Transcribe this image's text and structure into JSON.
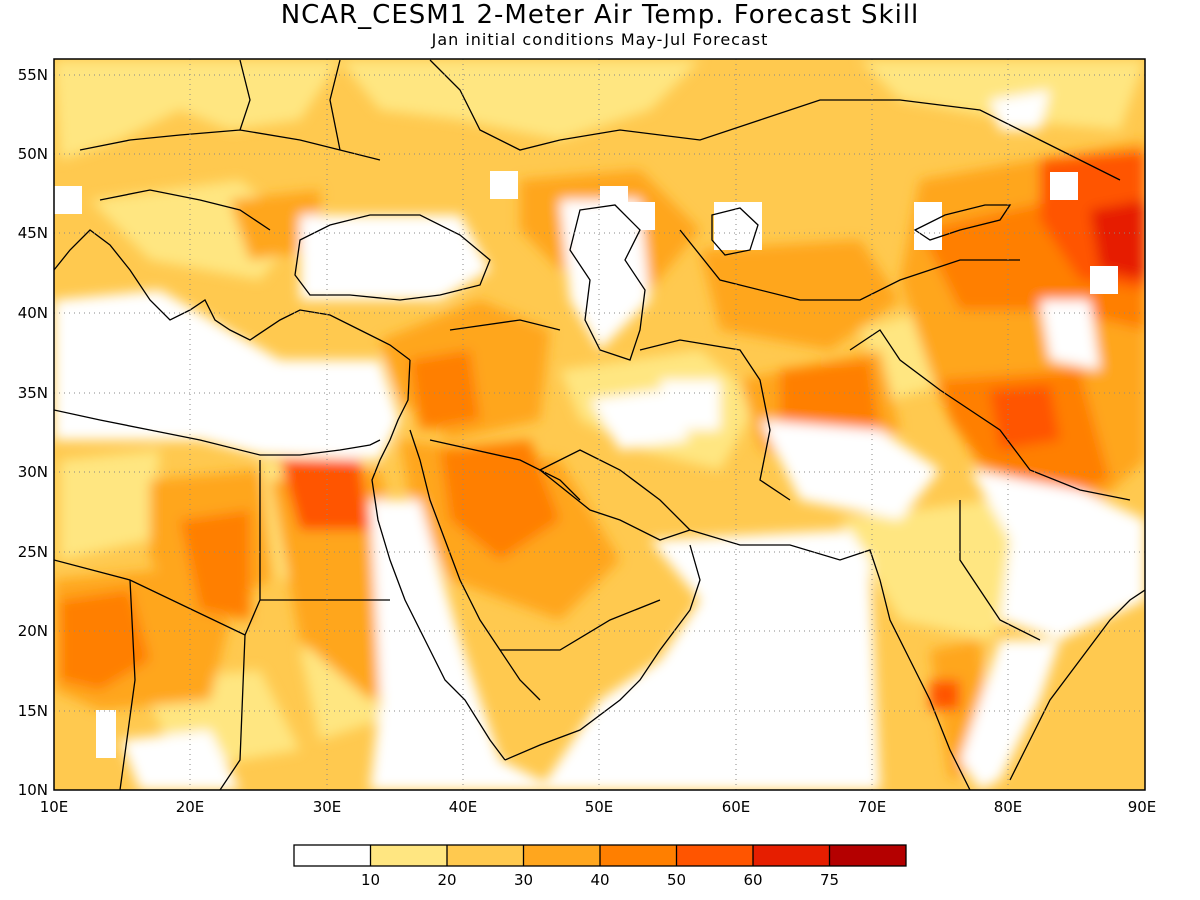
{
  "title": "NCAR_CESM1 2-Meter Air Temp. Forecast Skill",
  "subtitle": "Jan initial conditions  May-Jul Forecast",
  "axes": {
    "x_ticks": [
      "10E",
      "20E",
      "30E",
      "40E",
      "50E",
      "60E",
      "70E",
      "80E",
      "90E"
    ],
    "y_ticks": [
      "55N",
      "50N",
      "45N",
      "40N",
      "35N",
      "30N",
      "25N",
      "20N",
      "15N",
      "10N"
    ],
    "lon_range": [
      10,
      90
    ],
    "lat_range": [
      10,
      56
    ]
  },
  "colorbar": {
    "colors": [
      "#ffffff",
      "#ffe681",
      "#ffc94f",
      "#ffa61e",
      "#ff7f00",
      "#ff5500",
      "#e61e00",
      "#b40000"
    ],
    "labels": [
      "10",
      "20",
      "30",
      "40",
      "50",
      "60",
      "75"
    ]
  },
  "map": {
    "projection": "lat-lon",
    "grid": "dotted",
    "field": "skill percent"
  }
}
